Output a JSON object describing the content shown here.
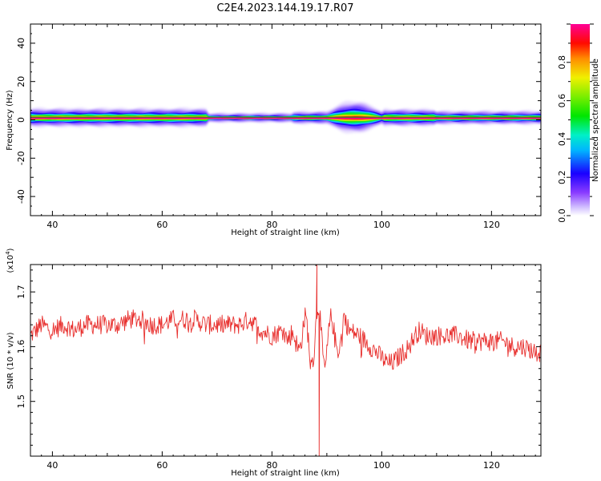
{
  "title": "C2E4.2023.144.19.17.R07",
  "colors": {
    "snr_line": "#e8302e",
    "background": "#ffffff",
    "axes": "#000000"
  },
  "chart_data": [
    {
      "type": "heatmap",
      "xlabel": "Height of straight line (km)",
      "ylabel": "Frequency (Hz)",
      "xlim": [
        36,
        129
      ],
      "ylim": [
        -50,
        50
      ],
      "x_ticks": [
        "40",
        "60",
        "80",
        "100",
        "120"
      ],
      "y_ticks": [
        "40",
        "20",
        "0",
        "-20",
        "-40"
      ],
      "colorbar": {
        "label": "Normalized spectral amplitude",
        "range": [
          0,
          1
        ],
        "ticks": [
          "0.0",
          "0.2",
          "0.4",
          "0.6",
          "0.8"
        ],
        "colormap": "rainbow (white-violet-blue-cyan-green-yellow-red-magenta)"
      },
      "features": {
        "center_frequency_hz": 1,
        "band_peak_frequency_hz_range": [
          0,
          2
        ],
        "spread_hz_typical": 5,
        "spread_hz_max_near_95km": 9,
        "x_range_of_strong_signal": [
          36,
          129
        ]
      }
    },
    {
      "type": "line",
      "xlabel": "Height of straight line (km)",
      "ylabel": "SNR (10 * v/v)",
      "y_multiplier": "(x10",
      "y_multiplier_exp": "4",
      "y_multiplier_close": ")",
      "xlim": [
        36,
        129
      ],
      "ylim": [
        1.4,
        1.75
      ],
      "x_ticks": [
        "40",
        "60",
        "80",
        "100",
        "120"
      ],
      "y_ticks": [
        "1.7",
        "1.6",
        "1.5"
      ],
      "series": [
        {
          "x": [
            36,
            38,
            40,
            42,
            44,
            46,
            48,
            50,
            52,
            54,
            56,
            58,
            60,
            62,
            64,
            66,
            68,
            70,
            72,
            74,
            76,
            78,
            80,
            82,
            83,
            84,
            85,
            86,
            87,
            88,
            89,
            90,
            91,
            92,
            93,
            94,
            96,
            98,
            100,
            101,
            102,
            103,
            104,
            105,
            106,
            107,
            108,
            110,
            112,
            114,
            116,
            118,
            120,
            122,
            124,
            126,
            128,
            129
          ],
          "y": [
            1.62,
            1.64,
            1.63,
            1.64,
            1.63,
            1.64,
            1.64,
            1.64,
            1.64,
            1.65,
            1.65,
            1.64,
            1.64,
            1.65,
            1.65,
            1.65,
            1.64,
            1.64,
            1.64,
            1.64,
            1.65,
            1.63,
            1.62,
            1.63,
            1.61,
            1.67,
            1.55,
            1.65,
            1.55,
            1.68,
            1.45,
            1.68,
            1.6,
            1.7,
            1.66,
            1.63,
            1.62,
            1.6,
            1.58,
            1.57,
            1.57,
            1.58,
            1.59,
            1.6,
            1.62,
            1.63,
            1.62,
            1.62,
            1.62,
            1.62,
            1.61,
            1.61,
            1.61,
            1.61,
            1.6,
            1.6,
            1.59,
            1.59
          ]
        }
      ],
      "extremes": {
        "max": {
          "x": 88.2,
          "y": 1.75
        },
        "min": {
          "x": 88.6,
          "y": 1.4
        }
      }
    }
  ]
}
